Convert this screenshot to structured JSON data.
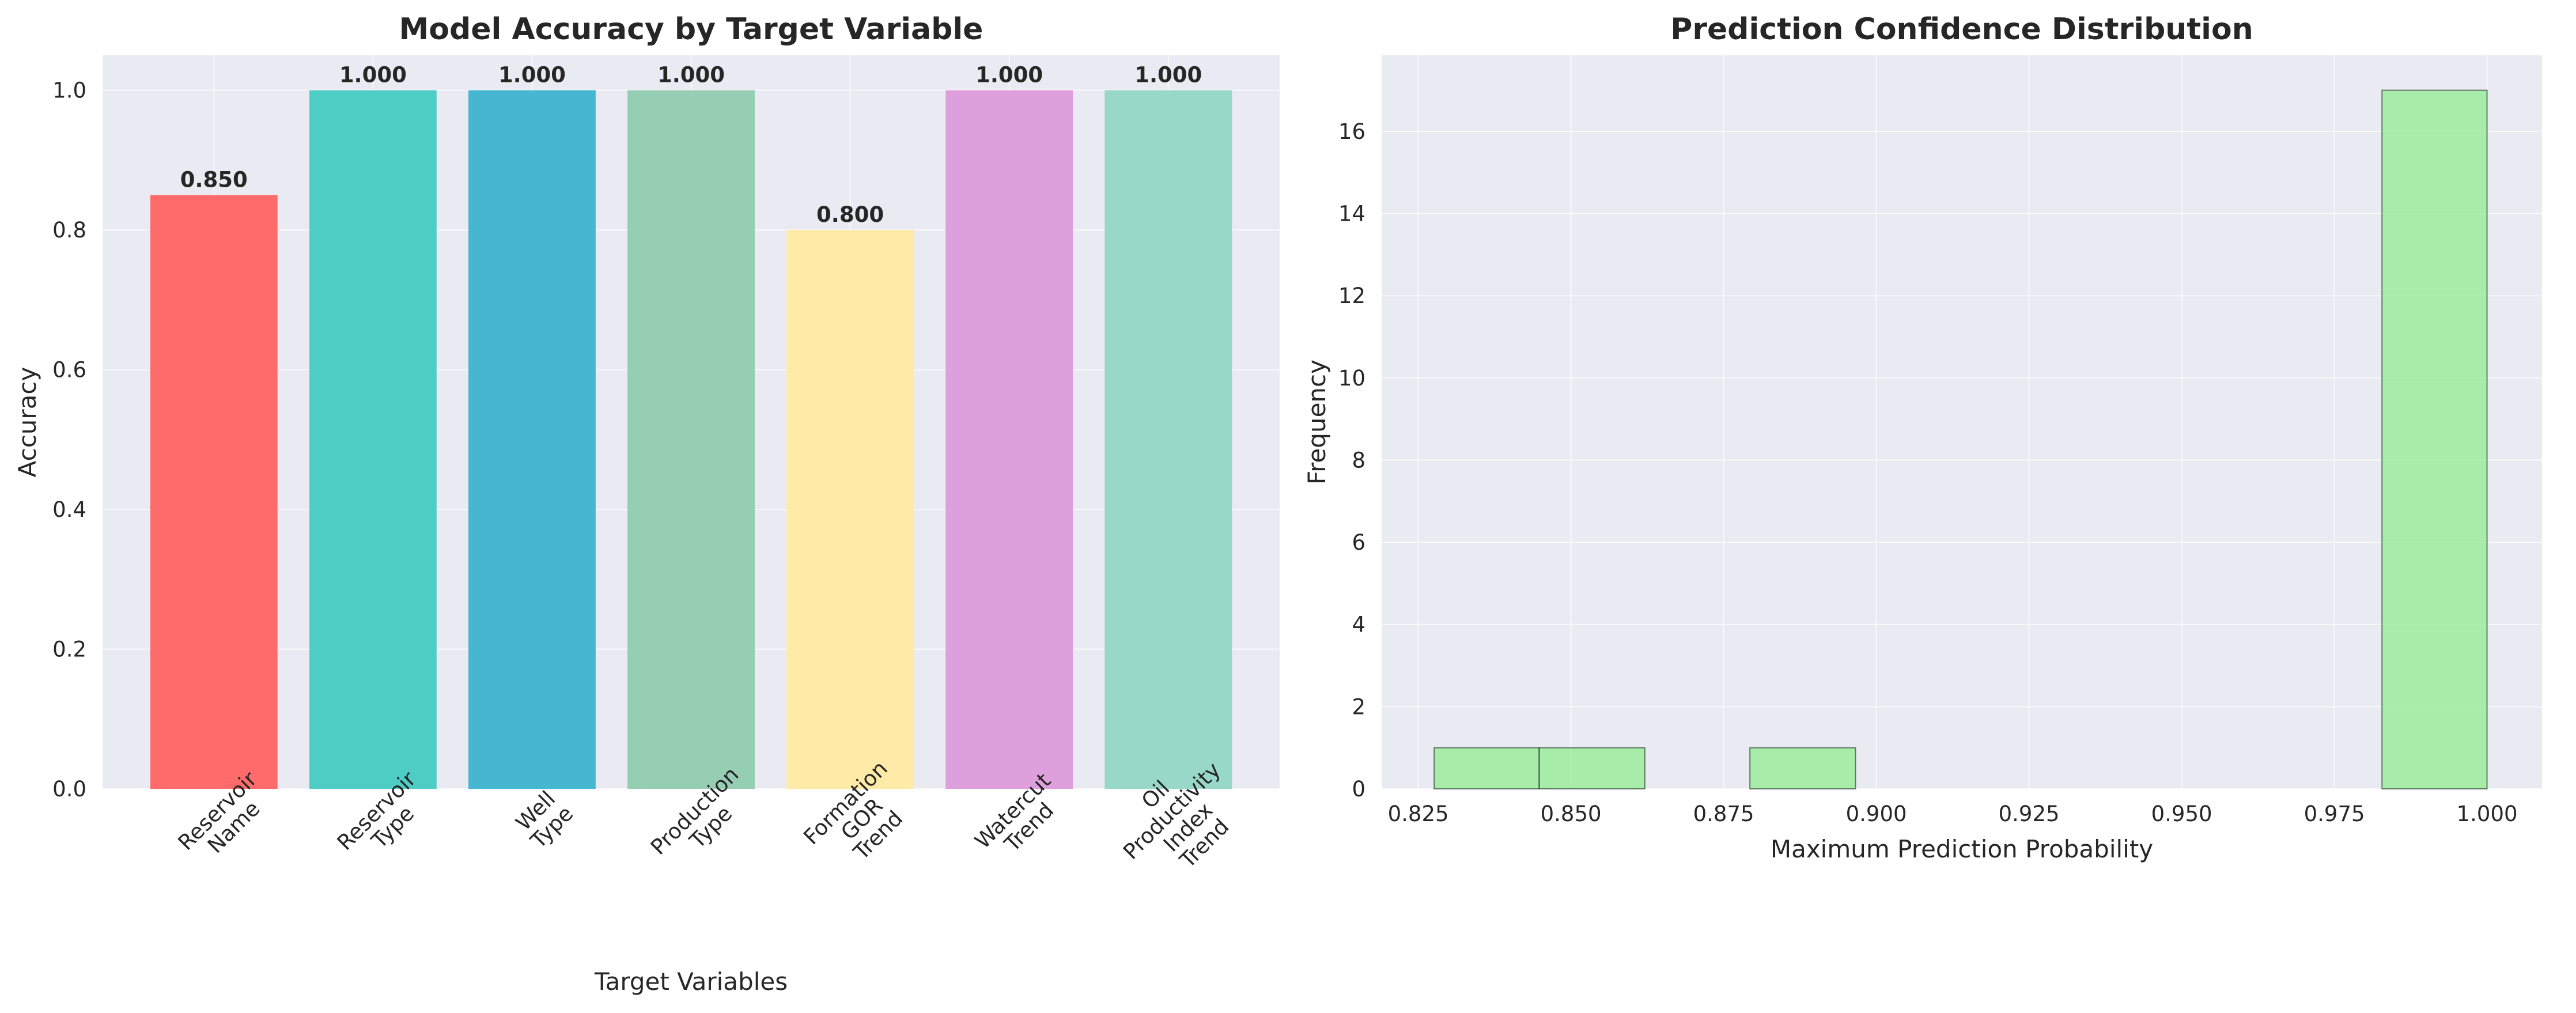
{
  "chart_data": [
    {
      "type": "bar",
      "title": "Model Accuracy by Target Variable",
      "xlabel": "Target Variables",
      "ylabel": "Accuracy",
      "categories": [
        [
          "Reservoir",
          "Name"
        ],
        [
          "Reservoir",
          "Type"
        ],
        [
          "Well",
          "Type"
        ],
        [
          "Production",
          "Type"
        ],
        [
          "Formation",
          "GOR",
          "Trend"
        ],
        [
          "Watercut",
          "Trend"
        ],
        [
          "Oil",
          "Productivity",
          "Index",
          "Trend"
        ]
      ],
      "values": [
        0.85,
        1.0,
        1.0,
        1.0,
        0.8,
        1.0,
        1.0
      ],
      "value_labels": [
        "0.850",
        "1.000",
        "1.000",
        "1.000",
        "0.800",
        "1.000",
        "1.000"
      ],
      "colors": [
        "#ff6b6b",
        "#4ecdc4",
        "#45b7d1",
        "#96ceb4",
        "#ffeaa7",
        "#dda0dd",
        "#98d8c8"
      ],
      "ylim": [
        0,
        1.05
      ],
      "yticks": [
        "0.0",
        "0.2",
        "0.4",
        "0.6",
        "0.8",
        "1.0"
      ],
      "grid": true
    },
    {
      "type": "bar",
      "subtype": "histogram",
      "title": "Prediction Confidence Distribution",
      "xlabel": "Maximum Prediction Probability",
      "ylabel": "Frequency",
      "bins": [
        {
          "x0": 0.8276,
          "x1": 0.8448,
          "count": 1
        },
        {
          "x0": 0.8448,
          "x1": 0.8621,
          "count": 1
        },
        {
          "x0": 0.8793,
          "x1": 0.8966,
          "count": 1
        },
        {
          "x0": 0.9828,
          "x1": 1.0,
          "count": 17
        }
      ],
      "xlim": [
        0.819,
        1.009
      ],
      "ylim": [
        0,
        17.85
      ],
      "xticks": [
        "0.825",
        "0.850",
        "0.875",
        "0.900",
        "0.925",
        "0.950",
        "0.975",
        "1.000"
      ],
      "yticks": [
        "0",
        "2",
        "4",
        "6",
        "8",
        "10",
        "12",
        "14",
        "16"
      ],
      "color": "#90ee90",
      "grid": true
    }
  ]
}
